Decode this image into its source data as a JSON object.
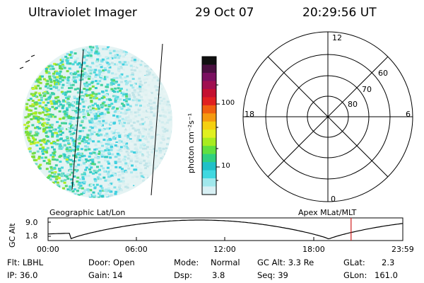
{
  "header": {
    "title": "Ultraviolet Imager",
    "date": "29 Oct 07",
    "time": "20:29:56 UT"
  },
  "colorbar": {
    "unit_label": "photon cm⁻²s⁻¹",
    "ticks": [
      "100",
      "10"
    ],
    "colors": [
      "#101010",
      "#4a1040",
      "#7a1060",
      "#a01050",
      "#c41030",
      "#e02020",
      "#f06010",
      "#f59a10",
      "#f5d010",
      "#e0f020",
      "#a8ec20",
      "#60e040",
      "#30d080",
      "#20c0c8",
      "#40d8e0",
      "#a0e8ec",
      "#d8f0f4"
    ]
  },
  "polar": {
    "lat_labels": [
      "60",
      "70",
      "80"
    ],
    "mlt_labels": {
      "top": "12",
      "left": "18",
      "right": "6",
      "bottom": "0"
    }
  },
  "timeline": {
    "left_title": "Geographic Lat/Lon",
    "right_title": "Apex MLat/MLT",
    "y_axis_label": "GC Alt",
    "y_ticks": [
      "9.0",
      "1.8"
    ],
    "x_ticks": [
      "00:00",
      "06:00",
      "12:00",
      "18:00",
      "23:59"
    ],
    "marker_time_hours": 20.5
  },
  "info": {
    "row1": {
      "flt": "Flt: LBHL",
      "door": "Door: Open",
      "mode_label": "Mode:",
      "mode_value": "Normal",
      "gcalt": "GC Alt: 3.3 Re",
      "glat_label": "GLat:",
      "glat_value": "2.3"
    },
    "row2": {
      "ip": "IP: 36.0",
      "gain": "Gain: 14",
      "dsp_label": "Dsp:",
      "dsp_value": "3.8",
      "seq": "Seq: 39",
      "glon_label": "GLon:",
      "glon_value": "161.0"
    }
  }
}
